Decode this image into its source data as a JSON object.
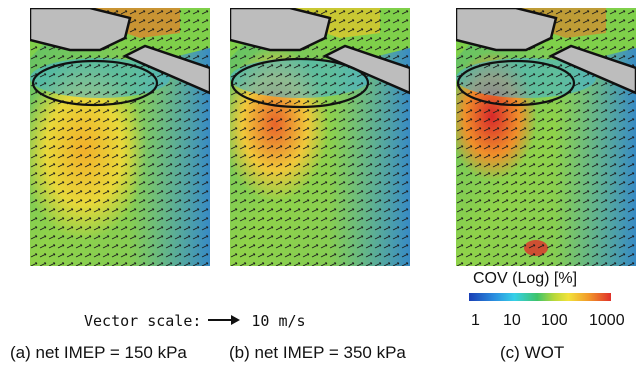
{
  "panels": [
    {
      "caption": "(a) net IMEP = 150 kPa"
    },
    {
      "caption": "(b) net IMEP = 350 kPa"
    },
    {
      "caption": "(c) WOT"
    }
  ],
  "vector_scale": {
    "label": "Vector scale:",
    "value": "10 m/s"
  },
  "colorbar": {
    "title": "COV (Log) [%]",
    "ticks": [
      "1",
      "10",
      "100",
      "1000"
    ],
    "colors": [
      "#1a3fb5",
      "#2b8fe0",
      "#36d0e8",
      "#3ec46a",
      "#b8d83a",
      "#f2e23a",
      "#f29a2a",
      "#e0302a"
    ]
  }
}
